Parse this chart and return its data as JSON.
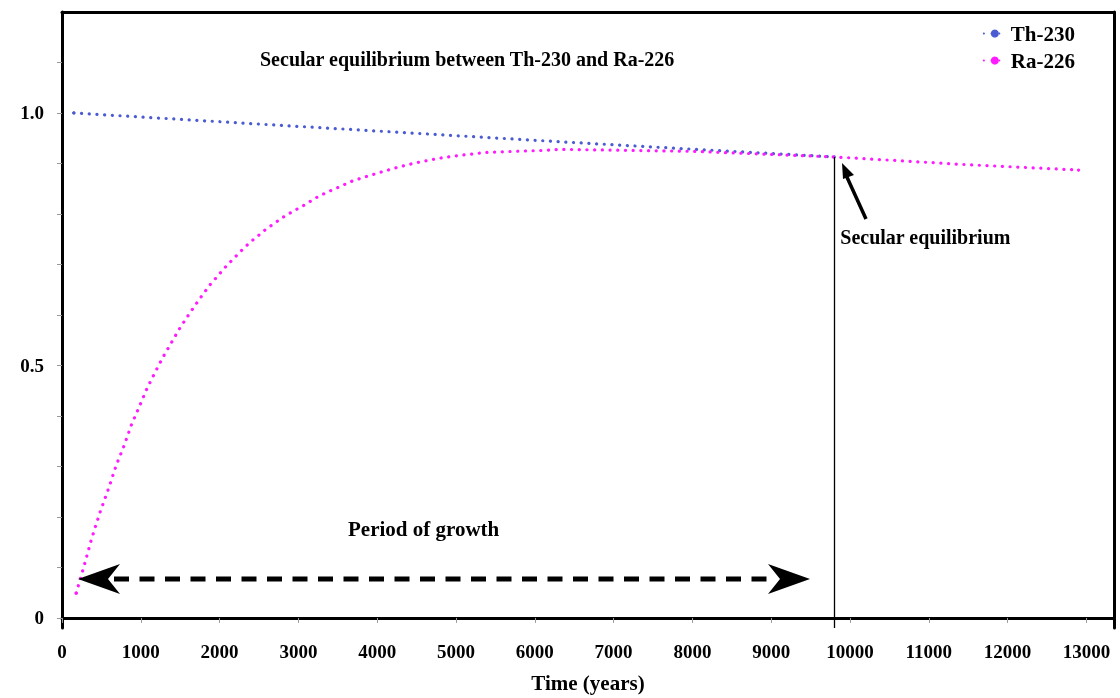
{
  "chart_data": {
    "type": "line",
    "title": "Secular equilibrium between Th-230 and Ra-226",
    "xlabel": "Time (years)",
    "xlim": [
      0,
      13350
    ],
    "ylim": [
      -0.02,
      1.2
    ],
    "xticks": [
      0,
      1000,
      2000,
      3000,
      4000,
      5000,
      6000,
      7000,
      8000,
      9000,
      10000,
      11000,
      12000,
      13000
    ],
    "yticks": [
      0,
      {
        "value": 0.1,
        "label": null
      },
      {
        "value": 0.2,
        "label": null
      },
      {
        "value": 0.3,
        "label": null
      },
      {
        "value": 0.4,
        "label": null
      },
      0.5,
      {
        "value": 0.6,
        "label": null
      },
      {
        "value": 0.7,
        "label": null
      },
      {
        "value": 0.8,
        "label": null
      },
      {
        "value": 0.9,
        "label": null
      },
      {
        "value": 1,
        "label": "1.0"
      },
      {
        "value": 1.1,
        "label": null
      }
    ],
    "grid": false,
    "legend": "top right",
    "marker": "none",
    "line_style": "dotted",
    "series": [
      {
        "name": "Th-230",
        "color": "#4b5bd1",
        "x": [
          150,
          2720,
          6320,
          8030,
          9800
        ],
        "values": [
          1.0,
          0.976,
          0.943,
          0.928,
          0.913
        ]
      },
      {
        "name": "Ra-226",
        "color": "#ff1aff",
        "x": [
          180,
          280,
          380,
          480,
          590,
          690,
          790,
          880,
          980,
          1080,
          1180,
          1280,
          1380,
          1480,
          1580,
          1680,
          1780,
          1880,
          1980,
          2080,
          2180,
          2280,
          2380,
          2490,
          2590,
          2700,
          2810,
          2940,
          3080,
          3210,
          3350,
          3510,
          3680,
          3860,
          4050,
          4250,
          4480,
          4770,
          5050,
          5390,
          5730,
          6130,
          6320,
          8030,
          9800,
          11440,
          12900
        ],
        "values": [
          0.049,
          0.103,
          0.159,
          0.208,
          0.256,
          0.303,
          0.342,
          0.382,
          0.418,
          0.455,
          0.486,
          0.516,
          0.543,
          0.57,
          0.594,
          0.617,
          0.639,
          0.66,
          0.678,
          0.696,
          0.712,
          0.728,
          0.743,
          0.757,
          0.77,
          0.782,
          0.794,
          0.806,
          0.818,
          0.831,
          0.842,
          0.853,
          0.865,
          0.874,
          0.883,
          0.892,
          0.901,
          0.91,
          0.916,
          0.922,
          0.924,
          0.926,
          0.928,
          0.924,
          0.913,
          0.898,
          0.887
        ]
      }
    ],
    "ref_lines": [
      {
        "axis": "x",
        "value": 9800,
        "color": "#000000",
        "line_style": "solid"
      }
    ],
    "annotations": [
      "Secular equilibrium",
      "Period of growth"
    ]
  }
}
